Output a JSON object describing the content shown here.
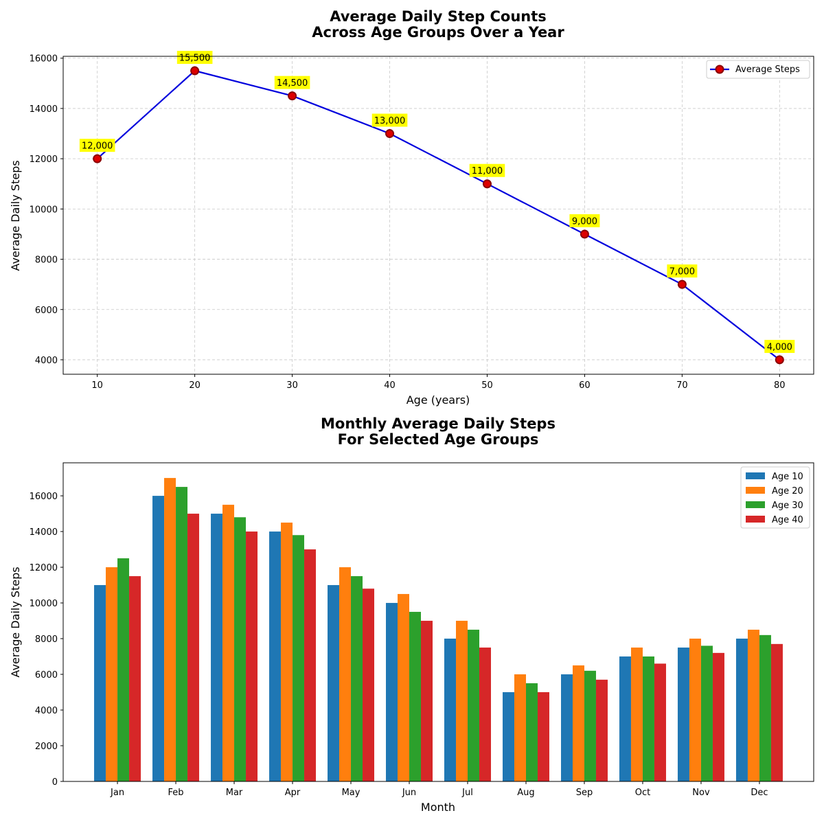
{
  "colors": {
    "line": "#0000dd",
    "marker_face": "#dd0000",
    "marker_edge": "#8b0000",
    "annotation_bg": "#ffff00",
    "age10": "#1f77b4",
    "age20": "#ff7f0e",
    "age30": "#2ca02c",
    "age40": "#d62728"
  },
  "chart_data": [
    {
      "type": "line",
      "title_line1": "Average Daily Step Counts",
      "title_line2": "Across Age Groups Over a Year",
      "xlabel": "Age (years)",
      "ylabel": "Average Daily Steps",
      "x": [
        10,
        20,
        30,
        40,
        50,
        60,
        70,
        80
      ],
      "series": [
        {
          "name": "Average Steps",
          "values": [
            12000,
            15500,
            14500,
            13000,
            11000,
            9000,
            7000,
            4000
          ],
          "labels": [
            "12,000",
            "15,500",
            "14,500",
            "13,000",
            "11,000",
            "9,000",
            "7,000",
            "4,000"
          ]
        }
      ],
      "xticks": [
        10,
        20,
        30,
        40,
        50,
        60,
        70,
        80
      ],
      "yticks": [
        4000,
        6000,
        8000,
        10000,
        12000,
        14000,
        16000
      ],
      "xlim": [
        6.5,
        83.5
      ],
      "ylim": [
        3425,
        16075
      ],
      "grid": true,
      "legend": "top-right"
    },
    {
      "type": "bar",
      "title_line1": "Monthly Average Daily Steps",
      "title_line2": "For Selected Age Groups",
      "xlabel": "Month",
      "ylabel": "Average Daily Steps",
      "categories": [
        "Jan",
        "Feb",
        "Mar",
        "Apr",
        "May",
        "Jun",
        "Jul",
        "Aug",
        "Sep",
        "Oct",
        "Nov",
        "Dec"
      ],
      "series": [
        {
          "name": "Age 10",
          "values": [
            11000,
            16000,
            15000,
            14000,
            11000,
            10000,
            8000,
            5000,
            6000,
            7000,
            7500,
            8000
          ]
        },
        {
          "name": "Age 20",
          "values": [
            12000,
            17000,
            15500,
            14500,
            12000,
            10500,
            9000,
            6000,
            6500,
            7500,
            8000,
            8500
          ]
        },
        {
          "name": "Age 30",
          "values": [
            12500,
            16500,
            14800,
            13800,
            11500,
            9500,
            8500,
            5500,
            6200,
            7000,
            7600,
            8200
          ]
        },
        {
          "name": "Age 40",
          "values": [
            11500,
            15000,
            14000,
            13000,
            10800,
            9000,
            7500,
            5000,
            5700,
            6600,
            7200,
            7700
          ]
        }
      ],
      "yticks": [
        0,
        2000,
        4000,
        6000,
        8000,
        10000,
        12000,
        14000,
        16000
      ],
      "ylim": [
        0,
        17850
      ],
      "grid": false,
      "legend": "top-right"
    }
  ]
}
